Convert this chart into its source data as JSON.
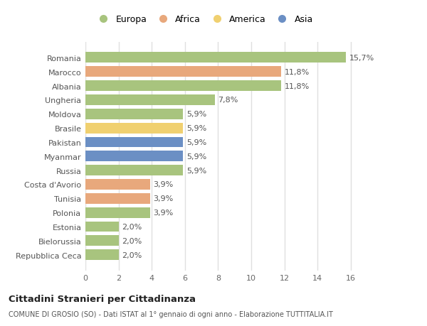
{
  "categories": [
    "Romania",
    "Marocco",
    "Albania",
    "Ungheria",
    "Moldova",
    "Brasile",
    "Pakistan",
    "Myanmar",
    "Russia",
    "Costa d'Avorio",
    "Tunisia",
    "Polonia",
    "Estonia",
    "Bielorussia",
    "Repubblica Ceca"
  ],
  "values": [
    15.7,
    11.8,
    11.8,
    7.8,
    5.9,
    5.9,
    5.9,
    5.9,
    5.9,
    3.9,
    3.9,
    3.9,
    2.0,
    2.0,
    2.0
  ],
  "labels": [
    "15,7%",
    "11,8%",
    "11,8%",
    "7,8%",
    "5,9%",
    "5,9%",
    "5,9%",
    "5,9%",
    "5,9%",
    "3,9%",
    "3,9%",
    "3,9%",
    "2,0%",
    "2,0%",
    "2,0%"
  ],
  "continent": [
    "Europa",
    "Africa",
    "Europa",
    "Europa",
    "Europa",
    "America",
    "Asia",
    "Asia",
    "Europa",
    "Africa",
    "Africa",
    "Europa",
    "Europa",
    "Europa",
    "Europa"
  ],
  "colors": {
    "Europa": "#a8c47e",
    "Africa": "#e8a87c",
    "America": "#f0d070",
    "Asia": "#6b8fc4"
  },
  "legend_order": [
    "Europa",
    "Africa",
    "America",
    "Asia"
  ],
  "title": "Cittadini Stranieri per Cittadinanza",
  "subtitle": "COMUNE DI GROSIO (SO) - Dati ISTAT al 1° gennaio di ogni anno - Elaborazione TUTTITALIA.IT",
  "xlim": [
    0,
    17
  ],
  "xticks": [
    0,
    2,
    4,
    6,
    8,
    10,
    12,
    14,
    16
  ],
  "background_color": "#ffffff",
  "plot_bg_color": "#ffffff",
  "grid_color": "#e0e0e0",
  "bar_height": 0.75,
  "label_fontsize": 8,
  "ytick_fontsize": 8,
  "xtick_fontsize": 8
}
